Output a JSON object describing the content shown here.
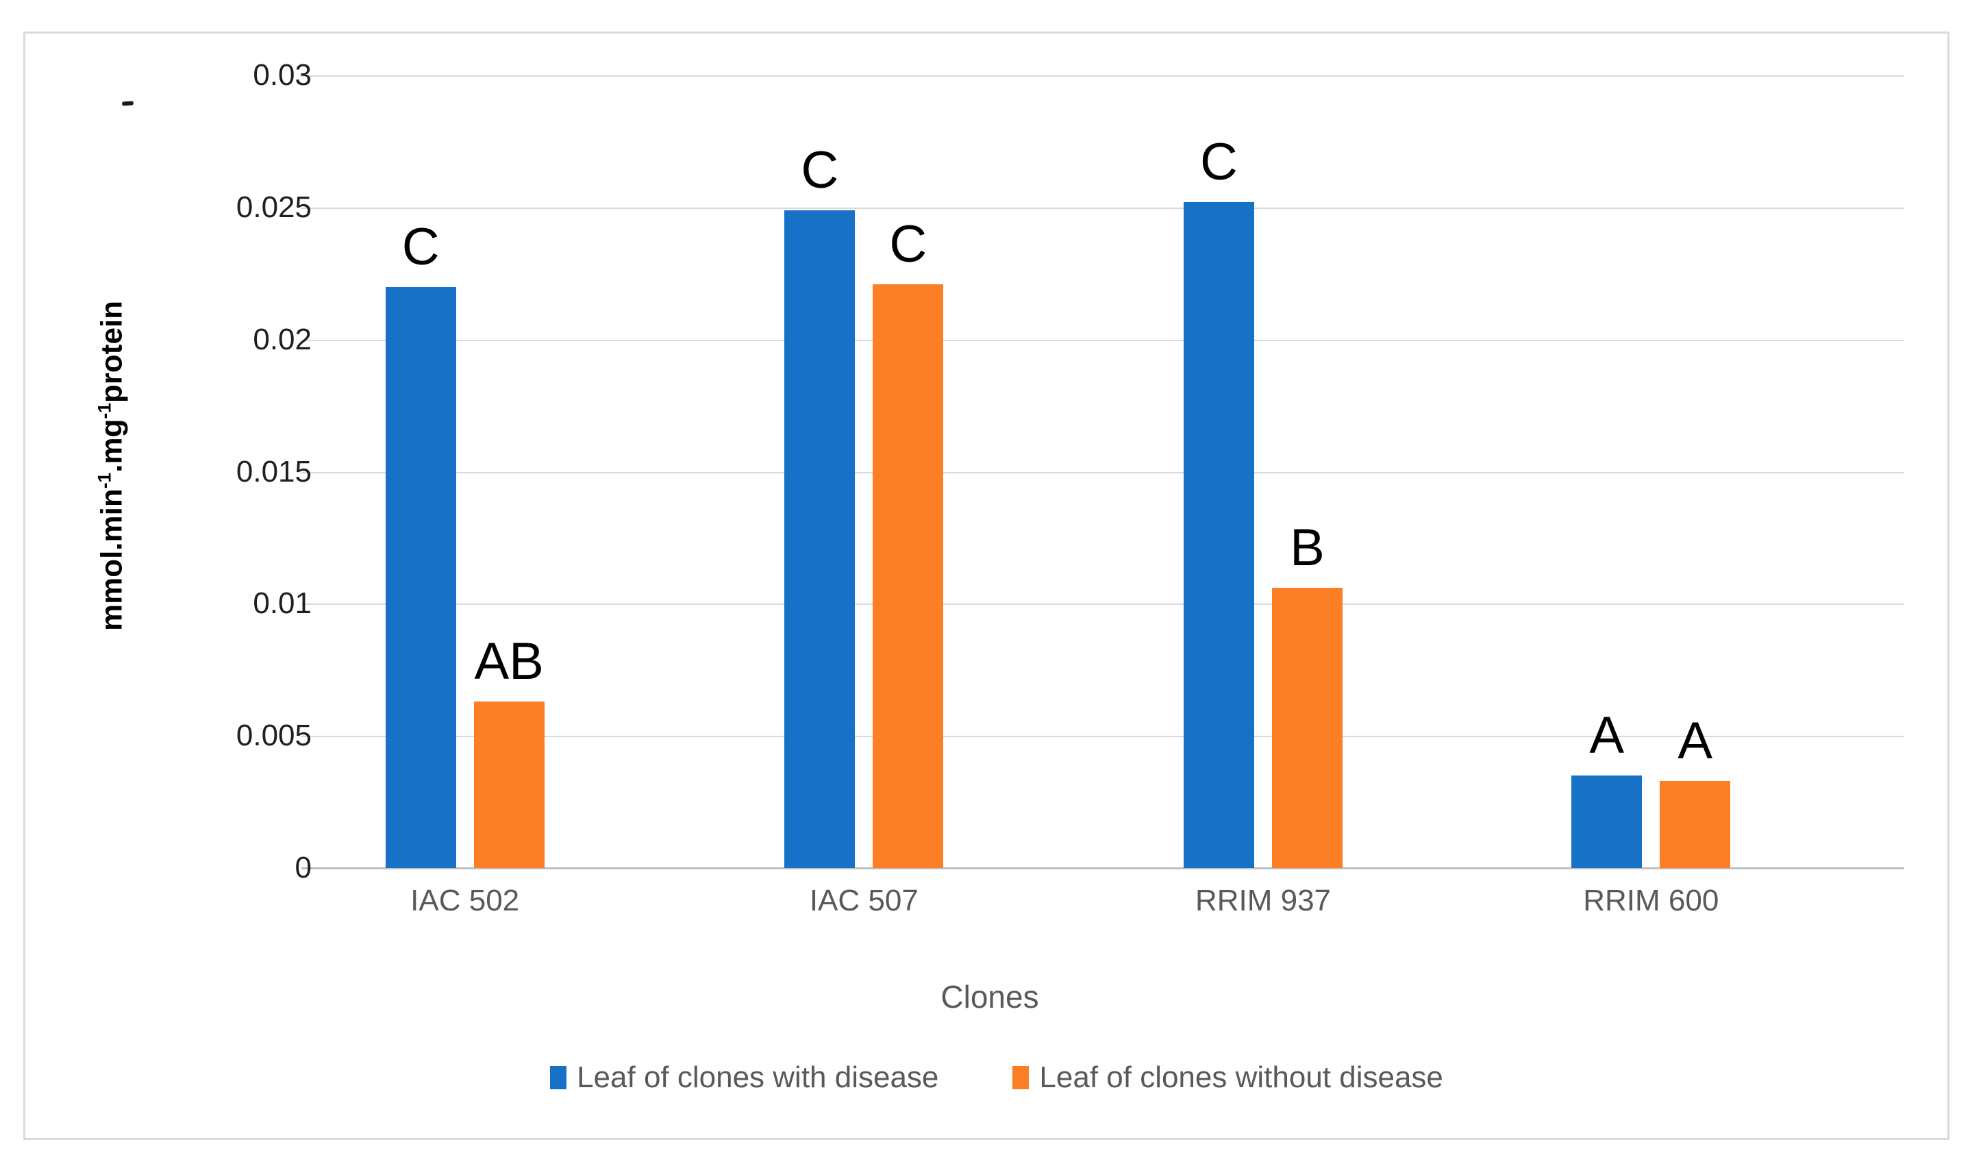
{
  "figure": {
    "background_color": "#ffffff",
    "border_color": "#d9d9d9"
  },
  "chart_data": {
    "type": "bar",
    "categories": [
      "IAC 502",
      "IAC 507",
      "RRIM 937",
      "RRIM 600"
    ],
    "series": [
      {
        "name": "Leaf of clones with disease",
        "color": "#1771c6",
        "values": [
          0.022,
          0.0249,
          0.0252,
          0.0035
        ],
        "point_labels": [
          "C",
          "C",
          "C",
          "A"
        ]
      },
      {
        "name": "Leaf of clones without disease",
        "color": "#fc7e25",
        "values": [
          0.0063,
          0.0221,
          0.0106,
          0.0033
        ],
        "point_labels": [
          "AB",
          "C",
          "B",
          "A"
        ]
      }
    ],
    "xlabel": "Clones",
    "ylabel": "mmol.min⁻¹.mg⁻¹protein",
    "ylim": [
      0,
      0.03
    ],
    "ytick_labels": [
      "0",
      "0.005",
      "0.01",
      "0.015",
      "0.02",
      "0.025",
      "0.03"
    ],
    "grid": "horizontal gridlines on",
    "legend_position": "bottom center",
    "gridline_color": "#d9d9d9",
    "axis_line_color": "#bfbfbf",
    "tick_label_color": "#1f1f1f",
    "category_label_color": "#595959",
    "point_label_color": "#000000"
  }
}
